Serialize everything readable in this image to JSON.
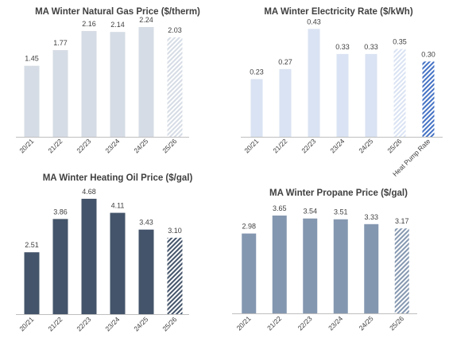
{
  "chart_data": [
    {
      "type": "bar",
      "title": "MA Winter Natural Gas Price ($/therm)",
      "categories": [
        "20/21",
        "21/22",
        "22/23",
        "23/24",
        "24/25",
        "25/26"
      ],
      "values": [
        1.45,
        1.77,
        2.16,
        2.14,
        2.24,
        2.03
      ],
      "labels": [
        "1.45",
        "1.77",
        "2.16",
        "2.14",
        "2.24",
        "2.03"
      ],
      "ylim": [
        0,
        2.5
      ],
      "grid": false,
      "colors": [
        "#d6dce5",
        "#d6dce5",
        "#d6dce5",
        "#d6dce5",
        "#d6dce5",
        "hatch:#d6dce5"
      ]
    },
    {
      "type": "bar",
      "title": "MA  Winter Electricity Rate ($/kWh)",
      "categories": [
        "20/21",
        "21/22",
        "22/23",
        "23/24",
        "24/25",
        "25/26",
        "Heat Pump Rate"
      ],
      "values": [
        0.23,
        0.27,
        0.43,
        0.33,
        0.33,
        0.35,
        0.3
      ],
      "labels": [
        "0.23",
        "0.27",
        "0.43",
        "0.33",
        "0.33",
        "0.35",
        "0.30"
      ],
      "ylim": [
        0,
        0.45
      ],
      "grid": false,
      "colors": [
        "#dae3f3",
        "#dae3f3",
        "#dae3f3",
        "#dae3f3",
        "#dae3f3",
        "hatch:#dae3f3",
        "hatch:#4472c4"
      ]
    },
    {
      "type": "bar",
      "title": "MA Winter Heating Oil Price ($/gal)",
      "categories": [
        "20/21",
        "21/22",
        "22/23",
        "23/24",
        "24/25",
        "25/26"
      ],
      "values": [
        2.51,
        3.86,
        4.68,
        4.11,
        3.43,
        3.1
      ],
      "labels": [
        "2.51",
        "3.86",
        "4.68",
        "4.11",
        "3.43",
        "3.10"
      ],
      "ylim": [
        0,
        5
      ],
      "grid": false,
      "colors": [
        "#44546a",
        "#44546a",
        "#44546a",
        "#44546a",
        "#44546a",
        "hatch:#44546a"
      ]
    },
    {
      "type": "bar",
      "title": "MA Winter Propane Price ($/gal)",
      "categories": [
        "20/21",
        "21/22",
        "22/23",
        "23/24",
        "24/25",
        "25/26"
      ],
      "values": [
        2.98,
        3.65,
        3.54,
        3.51,
        3.33,
        3.17
      ],
      "labels": [
        "2.98",
        "3.65",
        "3.54",
        "3.51",
        "3.33",
        "3.17"
      ],
      "ylim": [
        0,
        4.6
      ],
      "grid": false,
      "colors": [
        "#8497b0",
        "#8497b0",
        "#8497b0",
        "#8497b0",
        "#8497b0",
        "hatch:#8497b0"
      ]
    }
  ]
}
